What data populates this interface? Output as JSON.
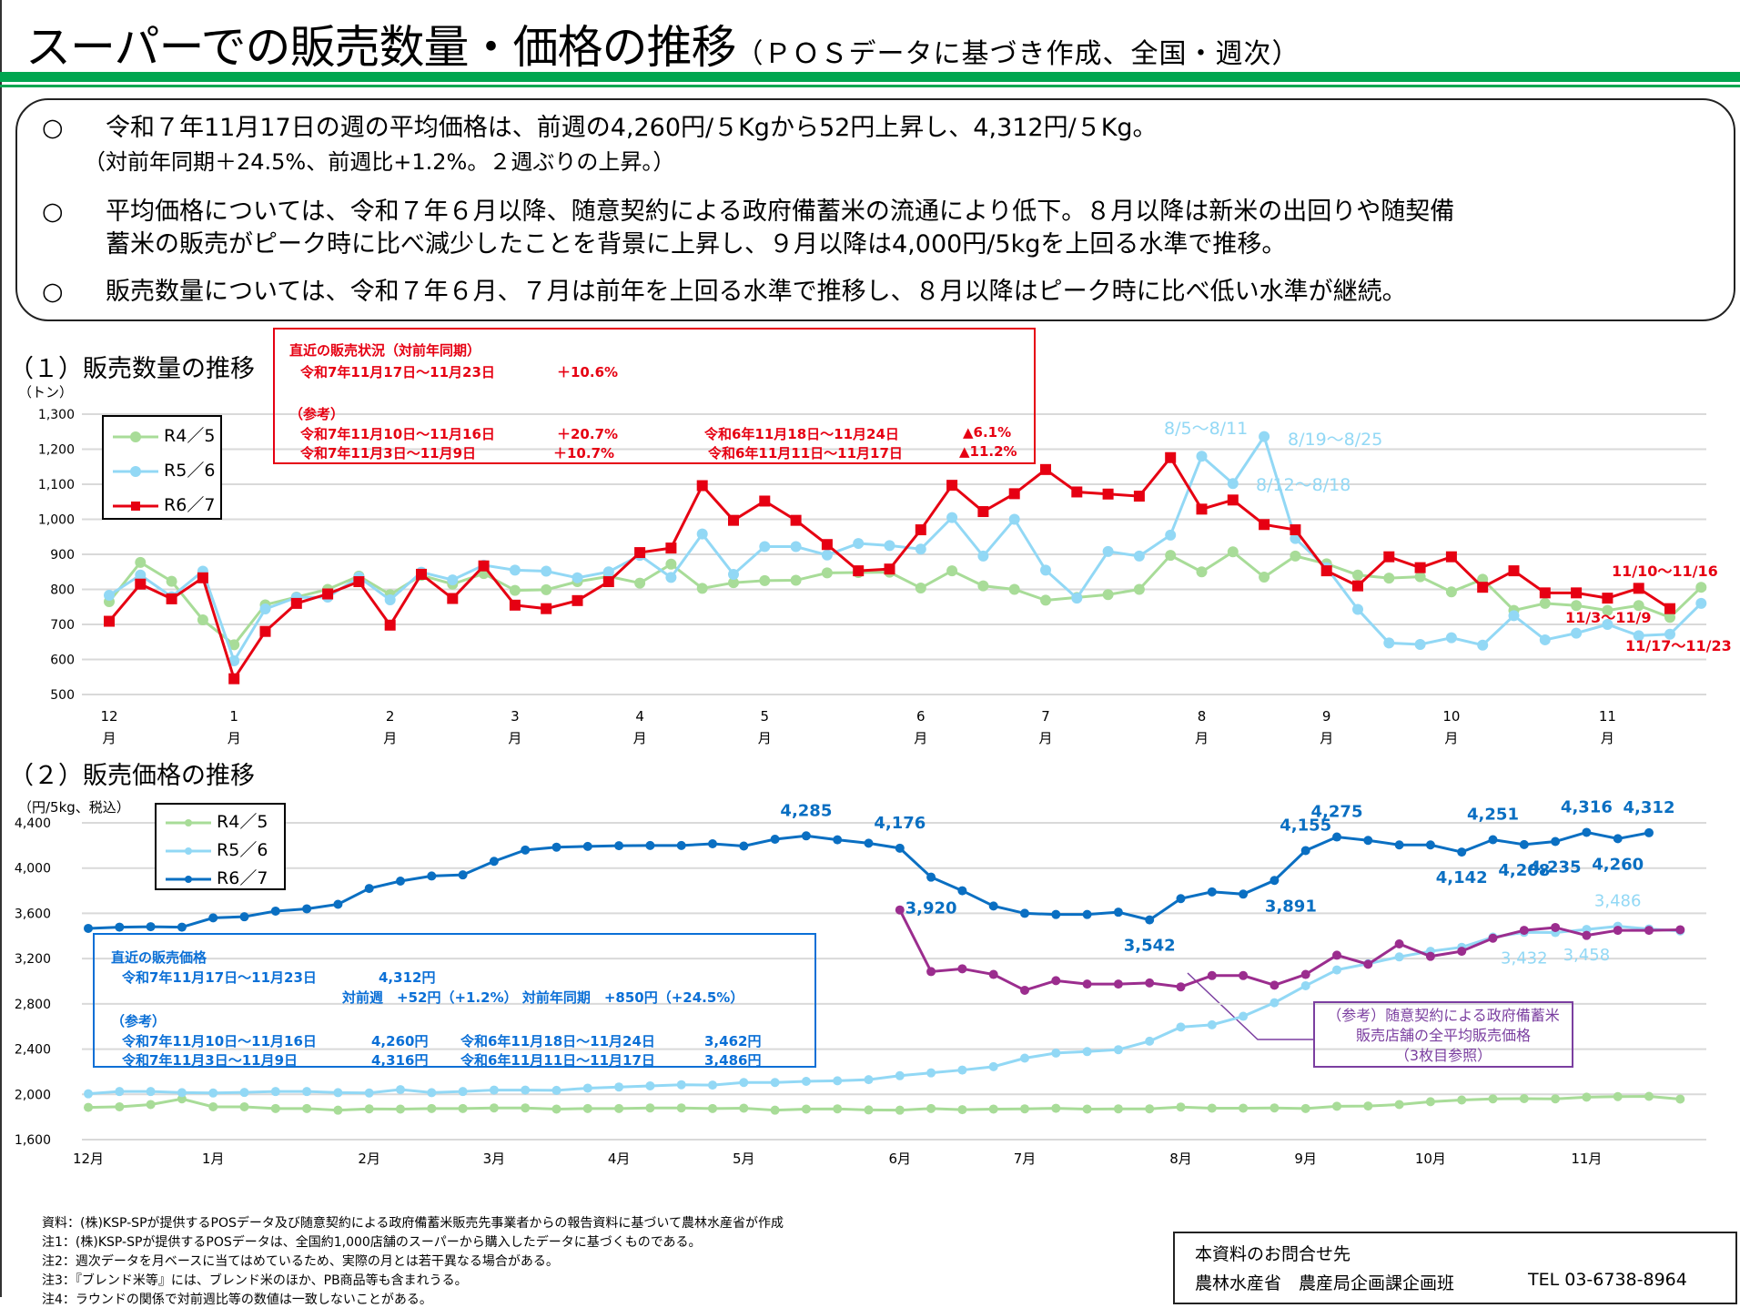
{
  "header": {
    "title": "スーパーでの販売数量・価格の推移",
    "subtitle": "（ＰＯＳデータに基づき作成、全国・週次）"
  },
  "summary": {
    "bullet_mark": "○",
    "items": [
      {
        "line1": "令和７年11月17日の週の平均価格は、前週の4,260円/５Kgから52円上昇し、4,312円/５Kg。",
        "line2": "（対前年同期＋24.5%、前週比+1.2%。２週ぶりの上昇。）"
      },
      {
        "line1": "平均価格については、令和７年６月以降、随意契約による政府備蓄米の流通により低下。８月以降は新米の出回りや随契備",
        "line2": "蓄米の販売がピーク時に比べ減少したことを背景に上昇し、９月以降は4,000円/5kgを上回る水準で推移。"
      },
      {
        "line1": "販売数量については、令和７年６月、７月は前年を上回る水準で推移し、８月以降はピーク時に比べ低い水準が継続。"
      }
    ]
  },
  "volume_section": {
    "heading": "（１）販売数量の推移",
    "unit": "（トン）",
    "info_box": {
      "title": "直近の販売状況（対前年同期）",
      "latest_period": "令和7年11月17日～11月23日",
      "latest_value": "＋10.6%",
      "ref_label": "（参考）",
      "refs": [
        {
          "period": "令和7年11月10日～11月16日",
          "value": "＋20.7%",
          "period2": "令和6年11月18日～11月24日",
          "value2": "▲6.1%"
        },
        {
          "period": "令和7年11月3日～11月9日",
          "value": "＋10.7%",
          "period2": "令和6年11月11日～11月17日",
          "value2": "▲11.2%"
        }
      ]
    }
  },
  "price_section": {
    "heading": "（２）販売価格の推移",
    "unit": "（円/5kg、税込）",
    "info_box": {
      "title": "直近の販売価格",
      "latest_period": "令和7年11月17日～11月23日",
      "latest_value": "4,312円",
      "compare": "対前週　+52円（+1.2%）  対前年同期　+850円（+24.5%）",
      "ref_label": "（参考）",
      "refs": [
        {
          "period": "令和7年11月10日～11月16日",
          "value": "4,260円",
          "period2": "令和6年11月18日～11月24日",
          "value2": "3,462円"
        },
        {
          "period": "令和7年11月3日～11月9日",
          "value": "4,316円",
          "period2": "令和6年11月11日～11月17日",
          "value2": "3,486円"
        }
      ]
    },
    "callout": [
      "（参考）随意契約による政府備蓄米",
      "販売店舗の全平均販売価格",
      "（3枚目参照）"
    ]
  },
  "footnotes": [
    "資料：(株)KSP-SPが提供するPOSデータ及び随意契約による政府備蓄米販売先事業者からの報告資料に基づいて農林水産省が作成",
    "注1：(株)KSP-SPが提供するPOSデータは、全国約1,000店舗のスーパーから購入したデータに基づくものである。",
    "注2：週次データを月ベースに当てはめているため、実際の月とは若干異なる場合がある。",
    "注3：『ブレンド米等』には、ブレンド米のほか、PB商品等も含まれうる。",
    "注4：ラウンドの関係で対前週比等の数値は一致しないことがある。"
  ],
  "contact": {
    "title": "本資料のお問合せ先",
    "org": "農林水産省　農産局企画課企画班",
    "tel": "TEL 03-6738-8964"
  },
  "colors": {
    "green_rule": "#00a650",
    "r45": "#a8dc98",
    "r56": "#92d8f5",
    "r67_volume": "#e60012",
    "r67_price": "#0a6fc2",
    "stockpile": "#9b2d8e",
    "price_box": "#0a6fd6"
  },
  "chart_data": [
    {
      "type": "line",
      "title": "販売数量の推移",
      "ylabel": "（トン）",
      "ylim": [
        500,
        1300
      ],
      "yticks": [
        500,
        600,
        700,
        800,
        900,
        1000,
        1100,
        1200,
        1300
      ],
      "ytick_labels": [
        "500",
        "600",
        "700",
        "800",
        "900",
        "1,000",
        "1,100",
        "1,200",
        "1,300"
      ],
      "month_ticks": [
        {
          "week": 0,
          "label": "12\n月"
        },
        {
          "week": 4,
          "label": "1\n月"
        },
        {
          "week": 9,
          "label": "2\n月"
        },
        {
          "week": 13,
          "label": "3\n月"
        },
        {
          "week": 17,
          "label": "4\n月"
        },
        {
          "week": 21,
          "label": "5\n月"
        },
        {
          "week": 26,
          "label": "6\n月"
        },
        {
          "week": 30,
          "label": "7\n月"
        },
        {
          "week": 35,
          "label": "8\n月"
        },
        {
          "week": 39,
          "label": "9\n月"
        },
        {
          "week": 43,
          "label": "10\n月"
        },
        {
          "week": 48,
          "label": "11\n月"
        }
      ],
      "grid": true,
      "legend": "top-left",
      "series": [
        {
          "name": "R4／5",
          "color": "#a8dc98",
          "marker": "circle",
          "values": [
            765,
            877,
            823,
            713,
            642,
            756,
            778,
            800,
            838,
            785,
            840,
            815,
            845,
            797,
            799,
            822,
            837,
            818,
            872,
            803,
            819,
            825,
            826,
            847,
            848,
            849,
            804,
            853,
            810,
            800,
            769,
            777,
            785,
            800,
            897,
            850,
            907,
            835,
            895,
            873,
            841,
            832,
            836,
            793,
            829,
            740,
            760,
            754,
            740,
            754,
            720,
            806
          ]
        },
        {
          "name": "R5／6",
          "color": "#92d8f5",
          "marker": "circle",
          "values": [
            783,
            841,
            779,
            852,
            596,
            744,
            777,
            778,
            835,
            770,
            849,
            827,
            869,
            855,
            852,
            833,
            850,
            897,
            834,
            958,
            843,
            922,
            922,
            898,
            931,
            925,
            915,
            1005,
            895,
            1000,
            855,
            775,
            908,
            895,
            955,
            1180,
            1102,
            1236,
            945,
            862,
            743,
            647,
            643,
            662,
            641,
            725,
            656,
            675,
            700,
            668,
            672,
            760
          ]
        },
        {
          "name": "R6／7",
          "color": "#e60012",
          "marker": "square",
          "values": [
            709,
            815,
            773,
            833,
            545,
            680,
            760,
            787,
            822,
            698,
            843,
            774,
            867,
            755,
            745,
            768,
            822,
            905,
            918,
            1096,
            997,
            1052,
            997,
            928,
            853,
            858,
            970,
            1097,
            1022,
            1073,
            1142,
            1078,
            1072,
            1066,
            1176,
            1029,
            1055,
            985,
            970,
            853,
            810,
            893,
            862,
            893,
            806,
            853,
            790,
            790,
            775,
            803,
            745
          ]
        }
      ],
      "annotations": [
        {
          "text": "8/5～8/11",
          "series": "R5／6",
          "color": "#92d8f5"
        },
        {
          "text": "8/19～8/25",
          "series": "R5／6",
          "color": "#92d8f5"
        },
        {
          "text": "8/12～8/18",
          "series": "R5／6",
          "color": "#92d8f5"
        },
        {
          "text": "11/10～11/16",
          "series": "R6／7",
          "color": "#e60012"
        },
        {
          "text": "11/3～11/9",
          "series": "R6／7",
          "color": "#e60012"
        },
        {
          "text": "11/17～11/23",
          "series": "R6／7",
          "color": "#e60012"
        }
      ]
    },
    {
      "type": "line",
      "title": "販売価格の推移",
      "ylabel": "（円/5kg、税込）",
      "ylim": [
        1600,
        4400
      ],
      "yticks": [
        1600,
        2000,
        2400,
        2800,
        3200,
        3600,
        4000,
        4400
      ],
      "ytick_labels": [
        "1,600",
        "2,000",
        "2,400",
        "2,800",
        "3,200",
        "3,600",
        "4,000",
        "4,400"
      ],
      "month_ticks": [
        {
          "week": 0,
          "label": "12月"
        },
        {
          "week": 4,
          "label": "1月"
        },
        {
          "week": 9,
          "label": "2月"
        },
        {
          "week": 13,
          "label": "3月"
        },
        {
          "week": 17,
          "label": "4月"
        },
        {
          "week": 21,
          "label": "5月"
        },
        {
          "week": 26,
          "label": "6月"
        },
        {
          "week": 30,
          "label": "7月"
        },
        {
          "week": 35,
          "label": "8月"
        },
        {
          "week": 39,
          "label": "9月"
        },
        {
          "week": 43,
          "label": "10月"
        },
        {
          "week": 48,
          "label": "11月"
        }
      ],
      "grid": true,
      "legend": "top-left",
      "series": [
        {
          "name": "R4／5",
          "color": "#a8dc98",
          "values": [
            1885,
            1890,
            1910,
            1960,
            1890,
            1890,
            1875,
            1875,
            1860,
            1872,
            1870,
            1875,
            1875,
            1880,
            1880,
            1870,
            1875,
            1875,
            1880,
            1880,
            1875,
            1878,
            1860,
            1870,
            1872,
            1862,
            1860,
            1875,
            1865,
            1870,
            1872,
            1877,
            1870,
            1872,
            1872,
            1888,
            1878,
            1878,
            1880,
            1875,
            1895,
            1897,
            1910,
            1935,
            1950,
            1960,
            1962,
            1960,
            1975,
            1980,
            1982,
            1958
          ]
        },
        {
          "name": "R5／6",
          "color": "#92d8f5",
          "values": [
            2005,
            2025,
            2025,
            2015,
            2012,
            2017,
            2025,
            2025,
            2015,
            2012,
            2042,
            2015,
            2025,
            2038,
            2038,
            2035,
            2055,
            2065,
            2075,
            2085,
            2082,
            2105,
            2105,
            2115,
            2120,
            2130,
            2165,
            2190,
            2215,
            2245,
            2320,
            2365,
            2378,
            2395,
            2470,
            2595,
            2615,
            2690,
            2810,
            2960,
            3100,
            3155,
            3215,
            3265,
            3300,
            3390,
            3432,
            3430,
            3458,
            3486,
            3462,
            3445
          ]
        },
        {
          "name": "R6／7",
          "color": "#0a6fc2",
          "values": [
            3467,
            3478,
            3482,
            3478,
            3560,
            3570,
            3620,
            3640,
            3680,
            3820,
            3885,
            3930,
            3940,
            4060,
            4160,
            4185,
            4192,
            4198,
            4200,
            4200,
            4215,
            4195,
            4255,
            4285,
            4250,
            4220,
            4176,
            3920,
            3800,
            3665,
            3600,
            3590,
            3590,
            3610,
            3542,
            3730,
            3790,
            3770,
            3891,
            4155,
            4275,
            4245,
            4205,
            4205,
            4142,
            4251,
            4208,
            4235,
            4316,
            4260,
            4312
          ]
        },
        {
          "name": "随意契約による政府備蓄米販売店舗の全平均販売価格",
          "color": "#9b2d8e",
          "start_week": 26,
          "values": [
            3630,
            3085,
            3110,
            3060,
            2920,
            3005,
            2975,
            2975,
            2985,
            2950,
            3050,
            3050,
            2965,
            3060,
            3230,
            3150,
            3330,
            3220,
            3265,
            3380,
            3450,
            3475,
            3405,
            3450,
            3450,
            3455
          ]
        }
      ],
      "data_labels": [
        {
          "series": "R6／7",
          "week": 23,
          "text": "4,285"
        },
        {
          "series": "R6／7",
          "week": 26,
          "text": "4,176"
        },
        {
          "series": "R6／7",
          "week": 27,
          "text": "3,920"
        },
        {
          "series": "R6／7",
          "week": 34,
          "text": "3,542"
        },
        {
          "series": "R6／7",
          "week": 38,
          "text": "3,891"
        },
        {
          "series": "R6／7",
          "week": 39,
          "text": "4,155"
        },
        {
          "series": "R6／7",
          "week": 40,
          "text": "4,275"
        },
        {
          "series": "R6／7",
          "week": 44,
          "text": "4,142"
        },
        {
          "series": "R6／7",
          "week": 45,
          "text": "4,251"
        },
        {
          "series": "R6／7",
          "week": 46,
          "text": "4,208"
        },
        {
          "series": "R6／7",
          "week": 47,
          "text": "4,235"
        },
        {
          "series": "R6／7",
          "week": 48,
          "text": "4,316"
        },
        {
          "series": "R6／7",
          "week": 49,
          "text": "4,260"
        },
        {
          "series": "R6／7",
          "week": 50,
          "text": "4,312"
        },
        {
          "series": "R5／6",
          "week": 46,
          "text": "3,432"
        },
        {
          "series": "R5／6",
          "week": 48,
          "text": "3,458"
        },
        {
          "series": "R5／6",
          "week": 49,
          "text": "3,486"
        }
      ]
    }
  ]
}
